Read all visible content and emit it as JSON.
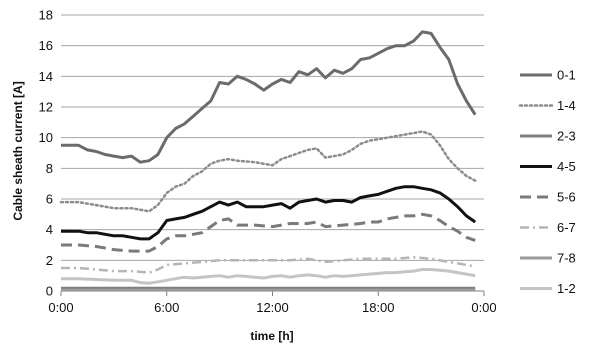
{
  "chart_data": {
    "type": "line",
    "xlabel": "time [h]",
    "ylabel": "Cable sheath  current [A]",
    "xlim": [
      0,
      24
    ],
    "ylim": [
      0,
      18
    ],
    "grid": "horizontal",
    "legend": "right",
    "x_ticks": [
      {
        "value": 0,
        "label": "0:00"
      },
      {
        "value": 6,
        "label": "6:00"
      },
      {
        "value": 12,
        "label": "12:00"
      },
      {
        "value": 18,
        "label": "18:00"
      },
      {
        "value": 24,
        "label": "0:00"
      }
    ],
    "y_ticks": [
      0,
      2,
      4,
      6,
      8,
      10,
      12,
      14,
      16,
      18
    ],
    "series": [
      {
        "name": "0-1",
        "color": "#6b6b6b",
        "dash": "solid",
        "width": 3,
        "points": [
          [
            0,
            9.5
          ],
          [
            1,
            9.5
          ],
          [
            1.5,
            9.2
          ],
          [
            2,
            9.1
          ],
          [
            2.5,
            8.9
          ],
          [
            3,
            8.8
          ],
          [
            3.5,
            8.7
          ],
          [
            4,
            8.8
          ],
          [
            4.5,
            8.4
          ],
          [
            5,
            8.5
          ],
          [
            5.5,
            8.9
          ],
          [
            6,
            10.0
          ],
          [
            6.5,
            10.6
          ],
          [
            7,
            10.9
          ],
          [
            7.5,
            11.4
          ],
          [
            8,
            11.9
          ],
          [
            8.5,
            12.4
          ],
          [
            9,
            13.6
          ],
          [
            9.5,
            13.5
          ],
          [
            10,
            14.0
          ],
          [
            10.5,
            13.8
          ],
          [
            11,
            13.5
          ],
          [
            11.5,
            13.1
          ],
          [
            12,
            13.5
          ],
          [
            12.5,
            13.8
          ],
          [
            13,
            13.6
          ],
          [
            13.5,
            14.3
          ],
          [
            14,
            14.1
          ],
          [
            14.5,
            14.5
          ],
          [
            15,
            13.9
          ],
          [
            15.5,
            14.4
          ],
          [
            16,
            14.2
          ],
          [
            16.5,
            14.5
          ],
          [
            17,
            15.1
          ],
          [
            17.5,
            15.2
          ],
          [
            18,
            15.5
          ],
          [
            18.5,
            15.8
          ],
          [
            19,
            16.0
          ],
          [
            19.5,
            16.0
          ],
          [
            20,
            16.3
          ],
          [
            20.5,
            16.9
          ],
          [
            21,
            16.8
          ],
          [
            21.5,
            15.9
          ],
          [
            22,
            15.1
          ],
          [
            22.5,
            13.5
          ],
          [
            23,
            12.4
          ],
          [
            23.5,
            11.5
          ]
        ]
      },
      {
        "name": "1-4",
        "color": "#8c8c8c",
        "dash": "dotted",
        "width": 2.5,
        "points": [
          [
            0,
            5.8
          ],
          [
            1,
            5.8
          ],
          [
            2,
            5.6
          ],
          [
            3,
            5.4
          ],
          [
            4,
            5.4
          ],
          [
            5,
            5.2
          ],
          [
            5.5,
            5.6
          ],
          [
            6,
            6.4
          ],
          [
            6.5,
            6.8
          ],
          [
            7,
            7.0
          ],
          [
            7.5,
            7.5
          ],
          [
            8,
            7.8
          ],
          [
            8.5,
            8.3
          ],
          [
            9,
            8.5
          ],
          [
            9.5,
            8.6
          ],
          [
            10,
            8.5
          ],
          [
            11,
            8.4
          ],
          [
            12,
            8.2
          ],
          [
            12.5,
            8.6
          ],
          [
            13,
            8.8
          ],
          [
            13.5,
            9.0
          ],
          [
            14,
            9.2
          ],
          [
            14.5,
            9.3
          ],
          [
            15,
            8.7
          ],
          [
            15.5,
            8.8
          ],
          [
            16,
            8.9
          ],
          [
            16.5,
            9.2
          ],
          [
            17,
            9.6
          ],
          [
            17.5,
            9.8
          ],
          [
            18,
            9.9
          ],
          [
            18.5,
            10.0
          ],
          [
            19,
            10.1
          ],
          [
            19.5,
            10.2
          ],
          [
            20,
            10.3
          ],
          [
            20.5,
            10.4
          ],
          [
            21,
            10.2
          ],
          [
            21.5,
            9.5
          ],
          [
            22,
            8.6
          ],
          [
            22.5,
            8.0
          ],
          [
            23,
            7.5
          ],
          [
            23.5,
            7.2
          ]
        ]
      },
      {
        "name": "2-3",
        "color": "#7f7f7f",
        "dash": "solid",
        "width": 3,
        "points": [
          [
            0,
            0.18
          ],
          [
            6,
            0.18
          ],
          [
            12,
            0.18
          ],
          [
            18,
            0.18
          ],
          [
            23.5,
            0.18
          ]
        ]
      },
      {
        "name": "4-5",
        "color": "#111111",
        "dash": "solid",
        "width": 3,
        "points": [
          [
            0,
            3.9
          ],
          [
            1,
            3.9
          ],
          [
            1.5,
            3.8
          ],
          [
            2,
            3.8
          ],
          [
            2.5,
            3.7
          ],
          [
            3,
            3.6
          ],
          [
            3.5,
            3.6
          ],
          [
            4,
            3.5
          ],
          [
            4.5,
            3.4
          ],
          [
            5,
            3.4
          ],
          [
            5.5,
            3.8
          ],
          [
            6,
            4.6
          ],
          [
            6.5,
            4.7
          ],
          [
            7,
            4.8
          ],
          [
            7.5,
            5.0
          ],
          [
            8,
            5.2
          ],
          [
            8.5,
            5.5
          ],
          [
            9,
            5.8
          ],
          [
            9.5,
            5.6
          ],
          [
            10,
            5.8
          ],
          [
            10.5,
            5.5
          ],
          [
            11,
            5.5
          ],
          [
            11.5,
            5.5
          ],
          [
            12,
            5.6
          ],
          [
            12.5,
            5.7
          ],
          [
            13,
            5.4
          ],
          [
            13.5,
            5.8
          ],
          [
            14,
            5.9
          ],
          [
            14.5,
            6.0
          ],
          [
            15,
            5.8
          ],
          [
            15.5,
            5.9
          ],
          [
            16,
            5.9
          ],
          [
            16.5,
            5.8
          ],
          [
            17,
            6.1
          ],
          [
            17.5,
            6.2
          ],
          [
            18,
            6.3
          ],
          [
            18.5,
            6.5
          ],
          [
            19,
            6.7
          ],
          [
            19.5,
            6.8
          ],
          [
            20,
            6.8
          ],
          [
            20.5,
            6.7
          ],
          [
            21,
            6.6
          ],
          [
            21.5,
            6.4
          ],
          [
            22,
            6.0
          ],
          [
            22.5,
            5.5
          ],
          [
            23,
            4.9
          ],
          [
            23.5,
            4.5
          ]
        ]
      },
      {
        "name": "5-6",
        "color": "#7a7a7a",
        "dash": "dashed",
        "width": 3,
        "points": [
          [
            0,
            3.0
          ],
          [
            1,
            3.0
          ],
          [
            2,
            2.9
          ],
          [
            3,
            2.7
          ],
          [
            4,
            2.6
          ],
          [
            5,
            2.6
          ],
          [
            5.5,
            2.9
          ],
          [
            6,
            3.4
          ],
          [
            6.5,
            3.6
          ],
          [
            7,
            3.6
          ],
          [
            7.5,
            3.7
          ],
          [
            8,
            3.8
          ],
          [
            8.5,
            4.2
          ],
          [
            9,
            4.6
          ],
          [
            9.5,
            4.7
          ],
          [
            10,
            4.3
          ],
          [
            11,
            4.3
          ],
          [
            12,
            4.2
          ],
          [
            12.5,
            4.3
          ],
          [
            13,
            4.4
          ],
          [
            14,
            4.4
          ],
          [
            14.5,
            4.5
          ],
          [
            15,
            4.2
          ],
          [
            16,
            4.3
          ],
          [
            17,
            4.4
          ],
          [
            17.5,
            4.5
          ],
          [
            18,
            4.5
          ],
          [
            18.5,
            4.7
          ],
          [
            19,
            4.8
          ],
          [
            19.5,
            4.9
          ],
          [
            20,
            4.9
          ],
          [
            20.5,
            5.0
          ],
          [
            21,
            4.9
          ],
          [
            21.5,
            4.6
          ],
          [
            22,
            4.2
          ],
          [
            22.5,
            3.9
          ],
          [
            23,
            3.5
          ],
          [
            23.5,
            3.3
          ]
        ]
      },
      {
        "name": "6-7",
        "color": "#b5b5b5",
        "dash": "dashdot",
        "width": 2.5,
        "points": [
          [
            0,
            1.5
          ],
          [
            1,
            1.5
          ],
          [
            2,
            1.4
          ],
          [
            3,
            1.3
          ],
          [
            4,
            1.3
          ],
          [
            5,
            1.2
          ],
          [
            5.5,
            1.4
          ],
          [
            6,
            1.7
          ],
          [
            7,
            1.8
          ],
          [
            8,
            1.9
          ],
          [
            9,
            2.0
          ],
          [
            10,
            2.0
          ],
          [
            11,
            2.0
          ],
          [
            12,
            2.0
          ],
          [
            13,
            2.0
          ],
          [
            14,
            2.1
          ],
          [
            15,
            1.9
          ],
          [
            16,
            2.0
          ],
          [
            17,
            2.1
          ],
          [
            18,
            2.1
          ],
          [
            19,
            2.1
          ],
          [
            20,
            2.2
          ],
          [
            21,
            2.1
          ],
          [
            22,
            1.9
          ],
          [
            23,
            1.7
          ],
          [
            23.5,
            1.6
          ]
        ]
      },
      {
        "name": "7-8",
        "color": "#9a9a9a",
        "dash": "solid",
        "width": 3,
        "points": [
          [
            0,
            0.06
          ],
          [
            6,
            0.06
          ],
          [
            12,
            0.06
          ],
          [
            18,
            0.06
          ],
          [
            23.5,
            0.06
          ]
        ]
      },
      {
        "name": "1-2",
        "color": "#c4c4c4",
        "dash": "solid",
        "width": 3,
        "points": [
          [
            0,
            0.8
          ],
          [
            1,
            0.8
          ],
          [
            2,
            0.75
          ],
          [
            3,
            0.7
          ],
          [
            4,
            0.7
          ],
          [
            4.5,
            0.55
          ],
          [
            5,
            0.5
          ],
          [
            5.5,
            0.6
          ],
          [
            6,
            0.7
          ],
          [
            6.5,
            0.8
          ],
          [
            7,
            0.9
          ],
          [
            7.5,
            0.85
          ],
          [
            8,
            0.9
          ],
          [
            8.5,
            0.95
          ],
          [
            9,
            1.0
          ],
          [
            9.5,
            0.9
          ],
          [
            10,
            1.0
          ],
          [
            10.5,
            0.95
          ],
          [
            11,
            0.9
          ],
          [
            11.5,
            0.85
          ],
          [
            12,
            0.95
          ],
          [
            12.5,
            1.0
          ],
          [
            13,
            0.9
          ],
          [
            13.5,
            1.0
          ],
          [
            14,
            1.05
          ],
          [
            14.5,
            1.0
          ],
          [
            15,
            0.9
          ],
          [
            15.5,
            1.0
          ],
          [
            16,
            0.95
          ],
          [
            16.5,
            1.0
          ],
          [
            17,
            1.05
          ],
          [
            17.5,
            1.1
          ],
          [
            18,
            1.15
          ],
          [
            18.5,
            1.2
          ],
          [
            19,
            1.2
          ],
          [
            19.5,
            1.25
          ],
          [
            20,
            1.3
          ],
          [
            20.5,
            1.4
          ],
          [
            21,
            1.4
          ],
          [
            21.5,
            1.35
          ],
          [
            22,
            1.3
          ],
          [
            22.5,
            1.2
          ],
          [
            23,
            1.1
          ],
          [
            23.5,
            1.0
          ]
        ]
      }
    ]
  }
}
